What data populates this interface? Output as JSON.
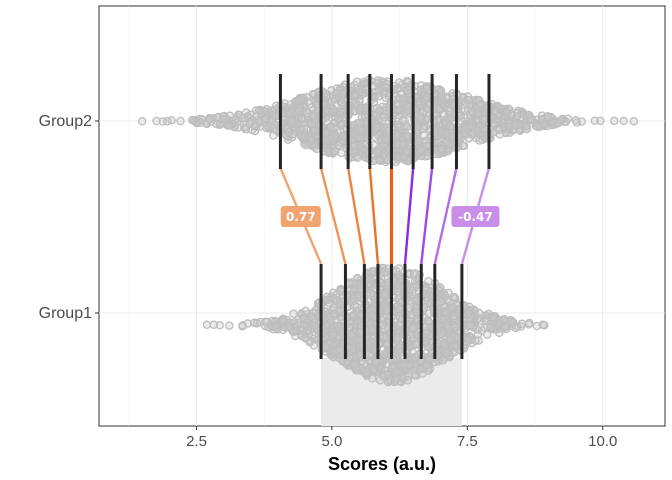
{
  "chart_data": {
    "type": "scatter",
    "subtype": "beeswarm-shift-function",
    "title": "",
    "xlabel": "Scores (a.u.)",
    "ylabel": "",
    "xlim": [
      0.7,
      11.15
    ],
    "x_ticks": [
      2.5,
      5.0,
      7.5,
      10.0
    ],
    "x_tick_labels": [
      "2.5",
      "5.0",
      "7.5",
      "10.0"
    ],
    "grid": true,
    "categories": [
      "Group1",
      "Group2"
    ],
    "series": [
      {
        "name": "Group1",
        "deciles": [
          4.8,
          5.25,
          5.6,
          5.85,
          6.1,
          6.35,
          6.65,
          6.9,
          7.4
        ],
        "range": [
          2.5,
          9.05
        ],
        "mode": 6.1
      },
      {
        "name": "Group2",
        "deciles": [
          4.05,
          4.8,
          5.3,
          5.7,
          6.1,
          6.5,
          6.85,
          7.3,
          7.9
        ],
        "range": [
          1.0,
          10.7
        ],
        "mode": 6.0
      }
    ],
    "shift_annotations": [
      {
        "decile": 1,
        "value": "0.77",
        "color": "#f2a470"
      },
      {
        "decile": 9,
        "value": "-0.47",
        "color": "#c88ee8"
      }
    ],
    "interval_band": [
      4.8,
      7.4
    ],
    "colors": {
      "points": "#bdbdbd",
      "decile_bars": "#262626",
      "orange_strong": "#e8620f",
      "purple_strong": "#8a2be2",
      "grid": "#ebebeb",
      "band": "#ebebeb"
    }
  }
}
